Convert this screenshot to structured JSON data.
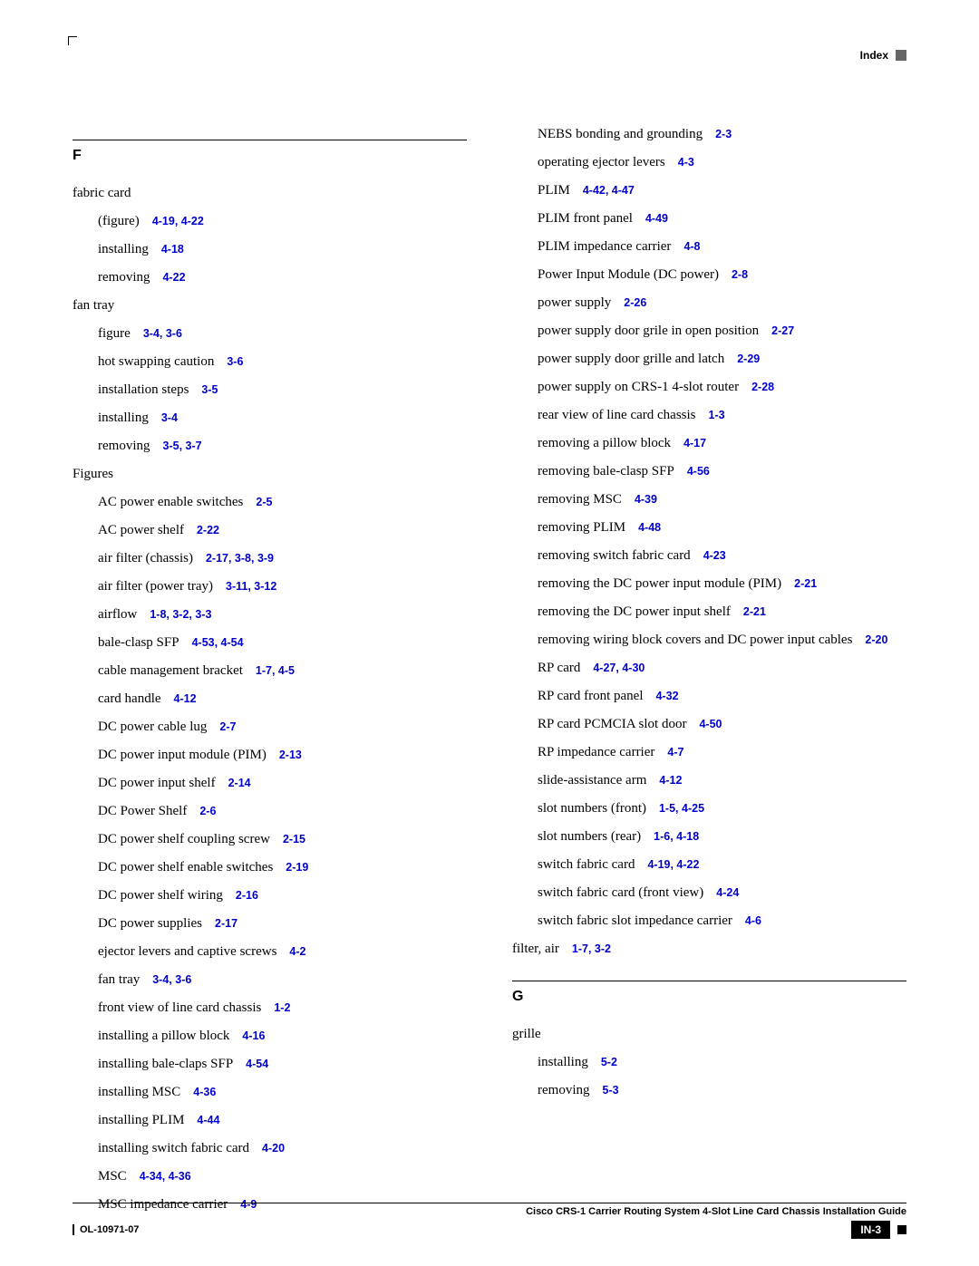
{
  "header": {
    "label": "Index"
  },
  "sections": {
    "F": [
      {
        "lvl": 0,
        "text": "fabric card",
        "refs": ""
      },
      {
        "lvl": 1,
        "text": "(figure)",
        "refs": "4-19, 4-22"
      },
      {
        "lvl": 1,
        "text": "installing",
        "refs": "4-18"
      },
      {
        "lvl": 1,
        "text": "removing",
        "refs": "4-22"
      },
      {
        "lvl": 0,
        "text": "fan tray",
        "refs": ""
      },
      {
        "lvl": 1,
        "text": "figure",
        "refs": "3-4, 3-6"
      },
      {
        "lvl": 1,
        "text": "hot swapping caution",
        "refs": "3-6"
      },
      {
        "lvl": 1,
        "text": "installation steps",
        "refs": "3-5"
      },
      {
        "lvl": 1,
        "text": "installing",
        "refs": "3-4"
      },
      {
        "lvl": 1,
        "text": "removing",
        "refs": "3-5, 3-7"
      },
      {
        "lvl": 0,
        "text": "Figures",
        "refs": ""
      },
      {
        "lvl": 1,
        "text": "AC power enable switches",
        "refs": "2-5"
      },
      {
        "lvl": 1,
        "text": "AC power shelf",
        "refs": "2-22"
      },
      {
        "lvl": 1,
        "text": "air filter (chassis)",
        "refs": "2-17, 3-8, 3-9"
      },
      {
        "lvl": 1,
        "text": "air filter (power tray)",
        "refs": "3-11, 3-12"
      },
      {
        "lvl": 1,
        "text": "airflow",
        "refs": "1-8, 3-2, 3-3"
      },
      {
        "lvl": 1,
        "text": "bale-clasp SFP",
        "refs": "4-53, 4-54"
      },
      {
        "lvl": 1,
        "text": "cable management bracket",
        "refs": "1-7, 4-5"
      },
      {
        "lvl": 1,
        "text": "card handle",
        "refs": "4-12"
      },
      {
        "lvl": 1,
        "text": "DC power cable lug",
        "refs": "2-7"
      },
      {
        "lvl": 1,
        "text": "DC power input module (PIM)",
        "refs": "2-13"
      },
      {
        "lvl": 1,
        "text": "DC power input shelf",
        "refs": "2-14"
      },
      {
        "lvl": 1,
        "text": "DC Power Shelf",
        "refs": "2-6"
      },
      {
        "lvl": 1,
        "text": "DC power shelf coupling screw",
        "refs": "2-15"
      },
      {
        "lvl": 1,
        "text": "DC power shelf enable switches",
        "refs": "2-19"
      },
      {
        "lvl": 1,
        "text": "DC power shelf wiring",
        "refs": "2-16"
      },
      {
        "lvl": 1,
        "text": "DC power supplies",
        "refs": "2-17"
      },
      {
        "lvl": 1,
        "text": "ejector levers and captive screws",
        "refs": "4-2"
      },
      {
        "lvl": 1,
        "text": "fan tray",
        "refs": "3-4, 3-6"
      },
      {
        "lvl": 1,
        "text": "front view of line card chassis",
        "refs": "1-2"
      },
      {
        "lvl": 1,
        "text": "installing a pillow block",
        "refs": "4-16"
      },
      {
        "lvl": 1,
        "text": "installing bale-claps SFP",
        "refs": "4-54"
      },
      {
        "lvl": 1,
        "text": "installing MSC",
        "refs": "4-36"
      },
      {
        "lvl": 1,
        "text": "installing PLIM",
        "refs": "4-44"
      },
      {
        "lvl": 1,
        "text": "installing switch fabric card",
        "refs": "4-20"
      },
      {
        "lvl": 1,
        "text": "MSC",
        "refs": "4-34, 4-36"
      },
      {
        "lvl": 1,
        "text": "MSC impedance carrier",
        "refs": "4-9"
      }
    ],
    "right_top": [
      {
        "lvl": 1,
        "text": "NEBS bonding and grounding",
        "refs": "2-3"
      },
      {
        "lvl": 1,
        "text": "operating ejector levers",
        "refs": "4-3"
      },
      {
        "lvl": 1,
        "text": "PLIM",
        "refs": "4-42, 4-47"
      },
      {
        "lvl": 1,
        "text": "PLIM front panel",
        "refs": "4-49"
      },
      {
        "lvl": 1,
        "text": "PLIM impedance carrier",
        "refs": "4-8"
      },
      {
        "lvl": 1,
        "text": "Power Input Module (DC power)",
        "refs": "2-8"
      },
      {
        "lvl": 1,
        "text": "power supply",
        "refs": "2-26"
      },
      {
        "lvl": 1,
        "text": "power supply door grile in open position",
        "refs": "2-27"
      },
      {
        "lvl": 1,
        "text": "power supply door grille and latch",
        "refs": "2-29"
      },
      {
        "lvl": 1,
        "text": "power supply on CRS-1 4-slot router",
        "refs": "2-28"
      },
      {
        "lvl": 1,
        "text": "rear view of line card chassis",
        "refs": "1-3"
      },
      {
        "lvl": 1,
        "text": "removing a pillow block",
        "refs": "4-17"
      },
      {
        "lvl": 1,
        "text": "removing bale-clasp SFP",
        "refs": "4-56"
      },
      {
        "lvl": 1,
        "text": "removing MSC",
        "refs": "4-39"
      },
      {
        "lvl": 1,
        "text": "removing PLIM",
        "refs": "4-48"
      },
      {
        "lvl": 1,
        "text": "removing switch fabric card",
        "refs": "4-23"
      },
      {
        "lvl": 1,
        "text": "removing the DC power input module (PIM)",
        "refs": "2-21"
      },
      {
        "lvl": 1,
        "text": "removing the DC power input shelf",
        "refs": "2-21"
      },
      {
        "lvl": 1,
        "text": "removing wiring block covers and DC power input cables",
        "refs": "2-20"
      },
      {
        "lvl": 1,
        "text": "RP card",
        "refs": "4-27, 4-30"
      },
      {
        "lvl": 1,
        "text": "RP card front panel",
        "refs": "4-32"
      },
      {
        "lvl": 1,
        "text": "RP card PCMCIA slot door",
        "refs": "4-50"
      },
      {
        "lvl": 1,
        "text": "RP impedance carrier",
        "refs": "4-7"
      },
      {
        "lvl": 1,
        "text": "slide-assistance arm",
        "refs": "4-12"
      },
      {
        "lvl": 1,
        "text": "slot numbers (front)",
        "refs": "1-5, 4-25"
      },
      {
        "lvl": 1,
        "text": "slot numbers (rear)",
        "refs": "1-6, 4-18"
      },
      {
        "lvl": 1,
        "text": "switch fabric card",
        "refs": "4-19, 4-22"
      },
      {
        "lvl": 1,
        "text": "switch fabric card (front view)",
        "refs": "4-24"
      },
      {
        "lvl": 1,
        "text": "switch fabric slot impedance carrier",
        "refs": "4-6"
      },
      {
        "lvl": 0,
        "text": "filter, air",
        "refs": "1-7, 3-2"
      }
    ],
    "G": [
      {
        "lvl": 0,
        "text": "grille",
        "refs": ""
      },
      {
        "lvl": 1,
        "text": "installing",
        "refs": "5-2"
      },
      {
        "lvl": 1,
        "text": "removing",
        "refs": "5-3"
      }
    ]
  },
  "footer": {
    "title": "Cisco CRS-1 Carrier Routing System 4-Slot Line Card Chassis Installation Guide",
    "doc_id": "OL-10971-07",
    "page": "IN-3"
  }
}
